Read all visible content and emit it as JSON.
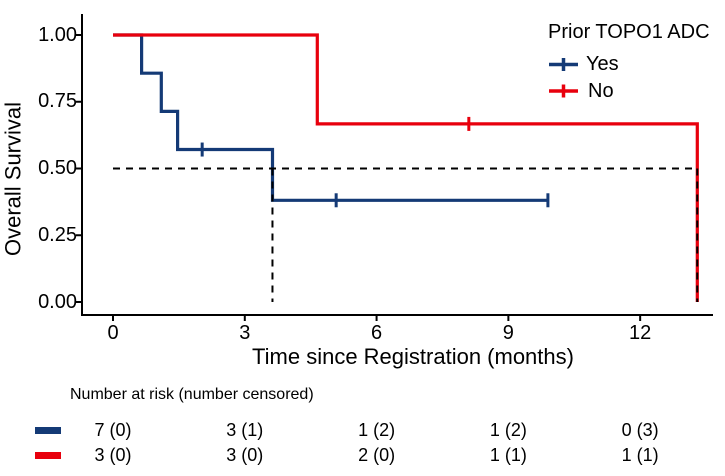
{
  "figure": {
    "background": "#ffffff",
    "text_color": "#000000",
    "axis_color": "#000000"
  },
  "chart_data": {
    "type": "line",
    "subtype": "kaplan-meier-step",
    "title": "",
    "xlabel": "Time since Registration (months)",
    "ylabel": "Overall Survival",
    "xlim": [
      0,
      13.6
    ],
    "ylim": [
      0,
      1
    ],
    "grid": false,
    "x_tick_values": [
      0,
      3,
      6,
      9,
      12
    ],
    "x_tick_labels": [
      "0",
      "3",
      "6",
      "9",
      "12"
    ],
    "y_tick_values": [
      1.0,
      0.75,
      0.5,
      0.25,
      0.0
    ],
    "y_tick_labels": [
      "1.00",
      "0.75",
      "0.50",
      "0.25",
      "0.00"
    ],
    "legend": {
      "title": "Prior TOPO1 ADC",
      "position": "top-right",
      "entries": [
        {
          "label": "Yes",
          "color": "#143a76"
        },
        {
          "label": "No",
          "color": "#e8000d"
        }
      ]
    },
    "series": [
      {
        "name": "Yes",
        "color": "#143a76",
        "steps": [
          [
            0,
            1.0
          ],
          [
            0.65,
            1.0
          ],
          [
            0.65,
            0.857
          ],
          [
            1.1,
            0.857
          ],
          [
            1.1,
            0.714
          ],
          [
            1.47,
            0.714
          ],
          [
            1.47,
            0.571
          ],
          [
            3.63,
            0.571
          ],
          [
            3.63,
            0.381
          ],
          [
            9.9,
            0.381
          ]
        ],
        "censor_marks": [
          [
            2.03,
            0.571
          ],
          [
            5.08,
            0.381
          ],
          [
            9.9,
            0.381
          ]
        ]
      },
      {
        "name": "No",
        "color": "#e8000d",
        "steps": [
          [
            0,
            1.0
          ],
          [
            4.65,
            1.0
          ],
          [
            4.65,
            0.667
          ],
          [
            13.3,
            0.667
          ],
          [
            13.3,
            0.0
          ]
        ],
        "censor_marks": [
          [
            8.1,
            0.667
          ]
        ]
      }
    ],
    "reference_lines": {
      "style": "dashed",
      "color": "#000000",
      "horizontal_y": 0.5,
      "horizontal_x_range": [
        0,
        13.3
      ],
      "vertical_x_values": [
        3.63,
        13.3
      ]
    },
    "risk_table": {
      "title": "Number at risk (number censored)",
      "time_points": [
        0,
        3,
        6,
        9,
        12
      ],
      "rows": [
        {
          "group": "Yes",
          "color": "#143a76",
          "values": [
            "7 (0)",
            "3 (1)",
            "1 (2)",
            "1 (2)",
            "0 (3)"
          ]
        },
        {
          "group": "No",
          "color": "#e8000d",
          "values": [
            "3 (0)",
            "3 (0)",
            "2 (0)",
            "1 (1)",
            "1 (1)"
          ]
        }
      ]
    }
  }
}
